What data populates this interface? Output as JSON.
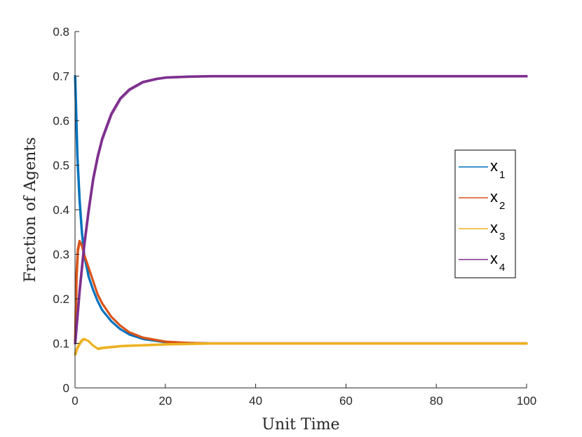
{
  "chart_data": {
    "type": "line",
    "xlabel": "Unit Time",
    "ylabel": "Fraction of Agents",
    "xlim": [
      0,
      100
    ],
    "ylim": [
      0,
      0.8
    ],
    "xticks": [
      "0",
      "20",
      "40",
      "60",
      "80",
      "100"
    ],
    "yticks": [
      "0",
      "0.1",
      "0.2",
      "0.3",
      "0.4",
      "0.5",
      "0.6",
      "0.7",
      "0.8"
    ],
    "grid": false,
    "legend_position": "right",
    "series": [
      {
        "name": "x",
        "subscript": "1",
        "color": "#0072BD",
        "x": [
          0,
          0.5,
          1,
          1.5,
          2,
          3,
          4,
          5,
          6,
          8,
          10,
          12,
          15,
          20,
          25,
          30,
          40,
          50,
          60,
          70,
          80,
          90,
          100
        ],
        "y": [
          0.7,
          0.52,
          0.42,
          0.35,
          0.3,
          0.25,
          0.22,
          0.195,
          0.175,
          0.15,
          0.132,
          0.12,
          0.11,
          0.103,
          0.101,
          0.1,
          0.1,
          0.1,
          0.1,
          0.1,
          0.1,
          0.1,
          0.1
        ]
      },
      {
        "name": "x",
        "subscript": "2",
        "color": "#D95319",
        "x": [
          0,
          0.3,
          0.6,
          1,
          1.5,
          2,
          3,
          4,
          5,
          6,
          8,
          10,
          12,
          15,
          20,
          25,
          30,
          40,
          50,
          60,
          70,
          80,
          90,
          100
        ],
        "y": [
          0.1,
          0.25,
          0.31,
          0.33,
          0.32,
          0.3,
          0.27,
          0.24,
          0.21,
          0.19,
          0.16,
          0.14,
          0.125,
          0.113,
          0.104,
          0.101,
          0.1,
          0.1,
          0.1,
          0.1,
          0.1,
          0.1,
          0.1,
          0.1
        ]
      },
      {
        "name": "x",
        "subscript": "3",
        "color": "#EDB120",
        "x": [
          0,
          0.3,
          0.6,
          1,
          1.5,
          2,
          3,
          4,
          5,
          6,
          8,
          10,
          12,
          15,
          20,
          25,
          30,
          40,
          50,
          60,
          70,
          80,
          90,
          100
        ],
        "y": [
          0.075,
          0.085,
          0.093,
          0.1,
          0.107,
          0.11,
          0.105,
          0.095,
          0.088,
          0.09,
          0.092,
          0.094,
          0.095,
          0.096,
          0.098,
          0.099,
          0.1,
          0.1,
          0.1,
          0.1,
          0.1,
          0.1,
          0.1,
          0.1
        ]
      },
      {
        "name": "x",
        "subscript": "4",
        "color": "#7E2F8E",
        "x": [
          0,
          0.5,
          1,
          1.5,
          2,
          3,
          4,
          5,
          6,
          8,
          10,
          12,
          15,
          18,
          20,
          25,
          30,
          40,
          50,
          60,
          70,
          80,
          90,
          100
        ],
        "y": [
          0.1,
          0.16,
          0.22,
          0.27,
          0.32,
          0.4,
          0.47,
          0.52,
          0.56,
          0.615,
          0.65,
          0.67,
          0.687,
          0.694,
          0.697,
          0.699,
          0.7,
          0.7,
          0.7,
          0.7,
          0.7,
          0.7,
          0.7,
          0.7
        ]
      }
    ]
  }
}
